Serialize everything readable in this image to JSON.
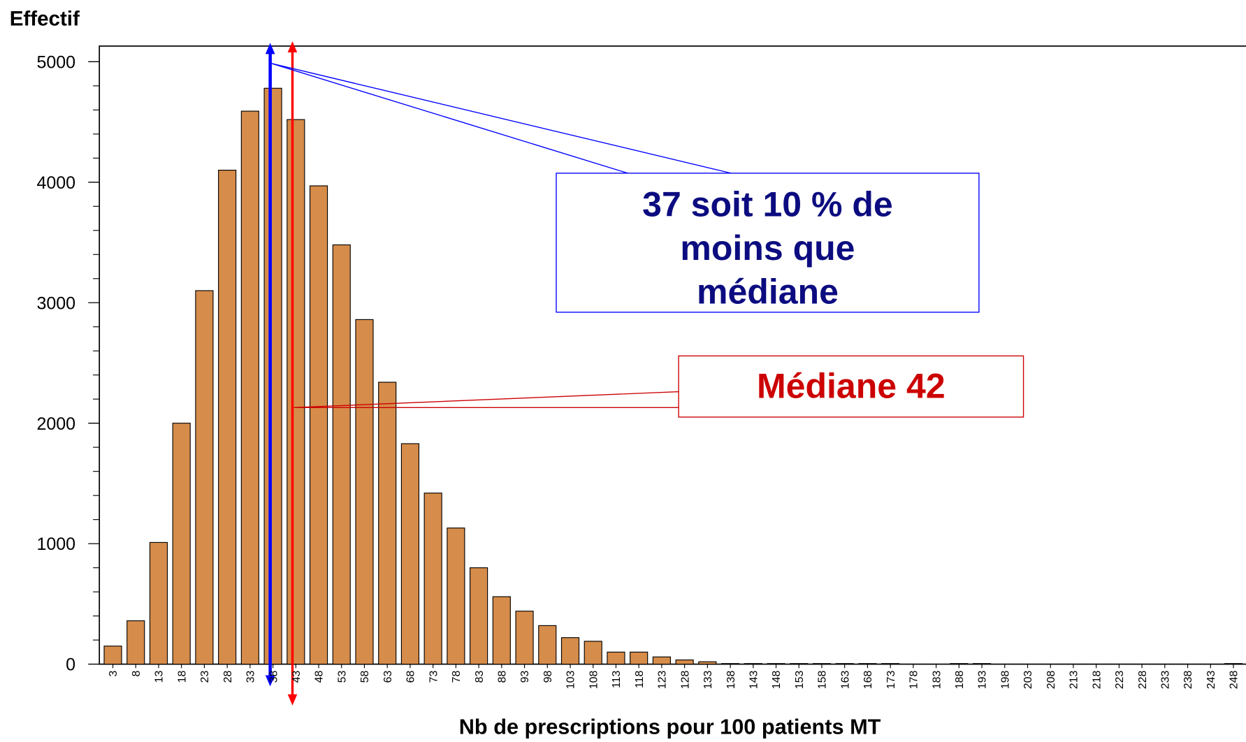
{
  "chart_data": {
    "type": "bar",
    "y_label": "Effectif",
    "x_label": "Nb de prescriptions pour 100 patients MT",
    "categories": [
      "3",
      "8",
      "13",
      "18",
      "23",
      "28",
      "33",
      "38",
      "43",
      "48",
      "53",
      "58",
      "63",
      "68",
      "73",
      "78",
      "83",
      "88",
      "93",
      "98",
      "103",
      "108",
      "113",
      "118",
      "123",
      "128",
      "133",
      "138",
      "143",
      "148",
      "153",
      "158",
      "163",
      "168",
      "173",
      "178",
      "183",
      "188",
      "193",
      "198",
      "203",
      "208",
      "213",
      "218",
      "223",
      "228",
      "233",
      "238",
      "243",
      "248"
    ],
    "values": [
      150,
      360,
      1010,
      2000,
      3100,
      4100,
      4590,
      4780,
      4520,
      3970,
      3480,
      2860,
      2340,
      1830,
      1420,
      1130,
      800,
      560,
      440,
      320,
      220,
      190,
      100,
      100,
      60,
      35,
      20,
      5,
      5,
      5,
      5,
      5,
      5,
      5,
      5,
      0,
      0,
      5,
      5,
      0,
      0,
      0,
      0,
      0,
      0,
      0,
      0,
      0,
      0,
      5
    ],
    "color": "#d68c4a",
    "ylim": [
      0,
      5130
    ],
    "yticks": [
      0,
      1000,
      2000,
      3000,
      4000,
      5000
    ],
    "yminorticks": [
      200,
      400,
      600,
      800,
      1200,
      1400,
      1600,
      1800,
      2200,
      2400,
      2600,
      2800,
      3200,
      3400,
      3600,
      3800,
      4200,
      4400,
      4600,
      4800
    ],
    "annotations": [
      {
        "lines": [
          "37 soit 10 % de",
          "moins que",
          "médiane"
        ],
        "color": "#0c0c80"
      },
      {
        "lines": [
          "Médiane 42"
        ],
        "color": "#cc0000"
      }
    ]
  }
}
